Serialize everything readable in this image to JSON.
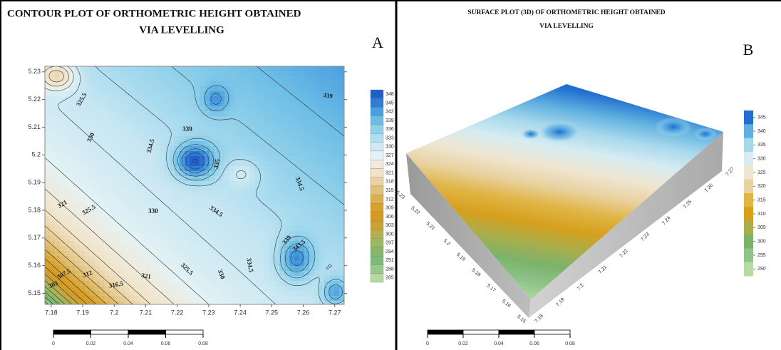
{
  "chart_data": [
    {
      "type": "contour",
      "title": [
        "CONTOUR PLOT OF ORTHOMETRIC HEIGHT  OBTAINED",
        "VIA LEVELLING"
      ],
      "panel_label": "A",
      "xlim": [
        7.178,
        7.273
      ],
      "xticks": [
        7.18,
        7.19,
        7.2,
        7.21,
        7.22,
        7.23,
        7.24,
        7.25,
        7.26,
        7.27
      ],
      "ylim": [
        5.146,
        5.232
      ],
      "yticks": [
        5.15,
        5.16,
        5.17,
        5.18,
        5.19,
        5.2,
        5.21,
        5.22,
        5.23
      ],
      "contour_labels": [
        325.5,
        330,
        334.5,
        339,
        339,
        335,
        321,
        325.5,
        330,
        334.5,
        334.5,
        339,
        343.5,
        307.5,
        303,
        312,
        316.5,
        321,
        325.5,
        330,
        334.5
      ],
      "colorbar_ticks": [
        348,
        345,
        342,
        339,
        336,
        333,
        330,
        327,
        324,
        321,
        318,
        315,
        312,
        309,
        306,
        303,
        300,
        297,
        294,
        291,
        288,
        285
      ],
      "colors": [
        "#1f5fc8",
        "#2e7dd6",
        "#4a9fe0",
        "#6cbde6",
        "#8fd0ea",
        "#b0def0",
        "#cfeaf3",
        "#e4f2f4",
        "#efeadb",
        "#f0e3c8",
        "#ead3a3",
        "#e2c27a",
        "#dcb04d",
        "#d8a12a",
        "#d69a20",
        "#c9a336",
        "#b7ae4f",
        "#9db85f",
        "#84b66c",
        "#7bbb79",
        "#96c98a",
        "#b5d89e"
      ],
      "scale_bar": [
        0,
        0.02,
        0.04,
        0.06,
        0.08
      ]
    },
    {
      "type": "surface",
      "title": [
        "SURFACE PLOT (3D) OF ORTHOMETRIC HEIGHT  OBTAINED",
        "VIA LEVELLING"
      ],
      "panel_label": "B",
      "xticks": [
        7.18,
        7.19,
        7.2,
        7.21,
        7.22,
        7.23,
        7.24,
        7.25,
        7.26,
        7.27
      ],
      "yticks": [
        5.15,
        5.16,
        5.17,
        5.18,
        5.19,
        5.2,
        5.21,
        5.22,
        5.23
      ],
      "colorbar_ticks": [
        345,
        340,
        335,
        330,
        325,
        320,
        315,
        310,
        305,
        300,
        295,
        290
      ],
      "colors": [
        "#1f6fd0",
        "#5fb0e0",
        "#a6d8ec",
        "#d6ecf1",
        "#efe6d2",
        "#e9d2a2",
        "#e0b546",
        "#d6a01d",
        "#a9ad4c",
        "#7bb36d",
        "#8fc58a",
        "#b8dba3"
      ],
      "scale_bar": [
        0,
        0.02,
        0.04,
        0.06,
        0.08
      ]
    }
  ]
}
